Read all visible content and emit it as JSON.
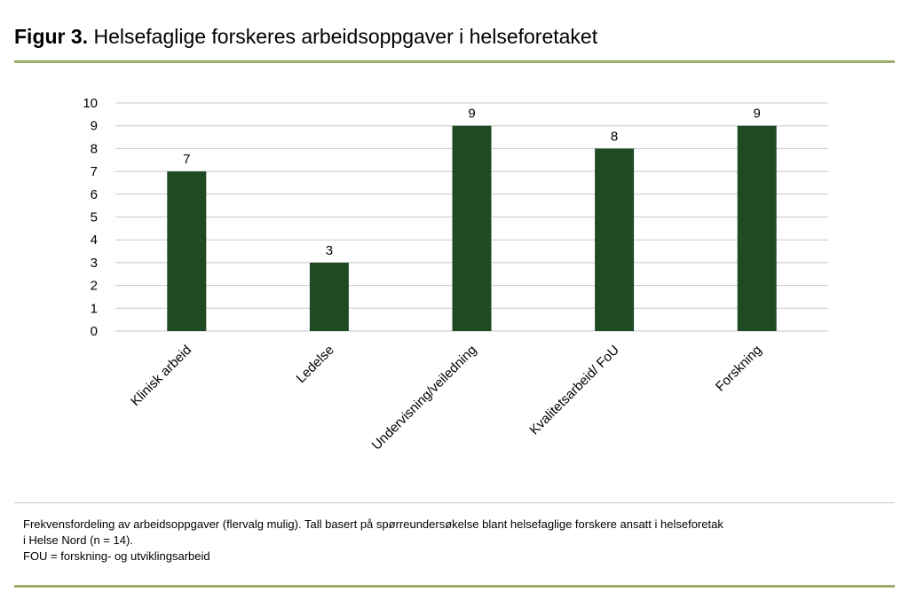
{
  "figure": {
    "label": "Figur 3.",
    "title": "Helsefaglige forskeres arbeidsoppgaver i helseforetaket"
  },
  "caption": {
    "line1": "Frekvensfordeling av arbeidsoppgaver (flervalg mulig). Tall basert på spørreundersøkelse blant helsefaglige forskere ansatt i helseforetak",
    "line2": "i Helse Nord (n = 14).",
    "line3": "FOU = forskning- og utviklingsarbeid"
  },
  "colors": {
    "bar": "#1f4a24",
    "grid": "#c8c8c8",
    "rule": "#9cae6c"
  },
  "chart_data": {
    "type": "bar",
    "categories": [
      "Klinisk arbeid",
      "Ledelse",
      "Undervisning/veiledning",
      "Kvalitetsarbeid/ FoU",
      "Forskning"
    ],
    "values": [
      7,
      3,
      9,
      8,
      9
    ],
    "yticks": [
      "0",
      "1",
      "2",
      "3",
      "4",
      "5",
      "6",
      "7",
      "8",
      "9",
      "10"
    ],
    "ylim": [
      0,
      10
    ],
    "grid": true,
    "legend": "none",
    "data_labels": true
  }
}
